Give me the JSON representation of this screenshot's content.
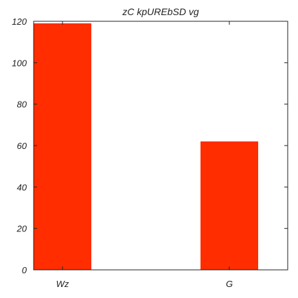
{
  "chart_data": {
    "type": "bar",
    "title": "zC kpUREbSD vg",
    "xlabel": "",
    "ylabel": "",
    "categories": [
      "Wz",
      "G"
    ],
    "values": [
      119,
      62
    ],
    "ylim": [
      0,
      120
    ],
    "yticks": [
      0,
      20,
      40,
      60,
      80,
      100,
      120
    ],
    "grid": false,
    "legend": "none",
    "bar_color": "#ff2d00"
  }
}
